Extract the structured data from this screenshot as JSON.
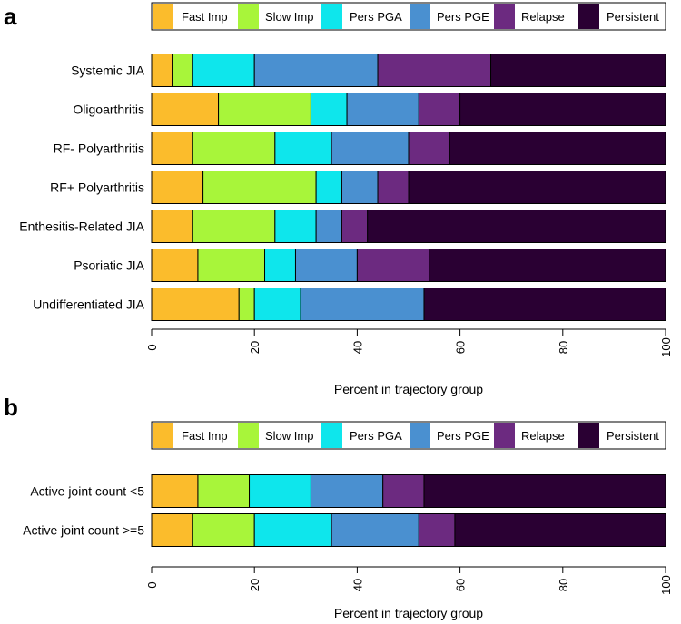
{
  "panel_letters": [
    "a",
    "b"
  ],
  "legend": [
    {
      "name": "Fast Imp",
      "color": "#fbbc2c"
    },
    {
      "name": "Slow Imp",
      "color": "#a8f53a"
    },
    {
      "name": "Pers PGA",
      "color": "#0ee6ec"
    },
    {
      "name": "Pers PGE",
      "color": "#4a90d0"
    },
    {
      "name": "Relapse",
      "color": "#6c2a80"
    },
    {
      "name": "Persistent",
      "color": "#2a0033"
    }
  ],
  "chart_data": [
    {
      "type": "bar",
      "orientation": "horizontal",
      "stacked": true,
      "panel": "a",
      "title": "",
      "xlabel": "Percent in trajectory group",
      "ylabel": "",
      "xlim": [
        0,
        100
      ],
      "xticks": [
        "0",
        "20",
        "40",
        "60",
        "80",
        "100"
      ],
      "categories": [
        "Systemic JIA",
        "Oligoarthritis",
        "RF- Polyarthritis",
        "RF+ Polyarthritis",
        "Enthesitis-Related JIA",
        "Psoriatic JIA",
        "Undifferentiated JIA"
      ],
      "series": [
        {
          "name": "Fast Imp",
          "values": [
            4,
            13,
            8,
            10,
            8,
            9,
            17
          ]
        },
        {
          "name": "Slow Imp",
          "values": [
            4,
            18,
            16,
            22,
            16,
            13,
            3
          ]
        },
        {
          "name": "Pers PGA",
          "values": [
            12,
            7,
            11,
            5,
            8,
            6,
            9
          ]
        },
        {
          "name": "Pers PGE",
          "values": [
            24,
            14,
            15,
            7,
            5,
            12,
            24
          ]
        },
        {
          "name": "Relapse",
          "values": [
            22,
            8,
            8,
            6,
            5,
            14,
            0
          ]
        },
        {
          "name": "Persistent",
          "values": [
            34,
            40,
            42,
            50,
            58,
            46,
            47
          ]
        }
      ],
      "legend_position": "top"
    },
    {
      "type": "bar",
      "orientation": "horizontal",
      "stacked": true,
      "panel": "b",
      "title": "",
      "xlabel": "Percent in trajectory group",
      "ylabel": "",
      "xlim": [
        0,
        100
      ],
      "xticks": [
        "0",
        "20",
        "40",
        "60",
        "80",
        "100"
      ],
      "categories": [
        "Active joint count <5",
        "Active joint count >=5"
      ],
      "series": [
        {
          "name": "Fast Imp",
          "values": [
            9,
            8
          ]
        },
        {
          "name": "Slow Imp",
          "values": [
            10,
            12
          ]
        },
        {
          "name": "Pers PGA",
          "values": [
            12,
            15
          ]
        },
        {
          "name": "Pers PGE",
          "values": [
            14,
            17
          ]
        },
        {
          "name": "Relapse",
          "values": [
            8,
            7
          ]
        },
        {
          "name": "Persistent",
          "values": [
            47,
            41
          ]
        }
      ],
      "legend_position": "top"
    }
  ]
}
